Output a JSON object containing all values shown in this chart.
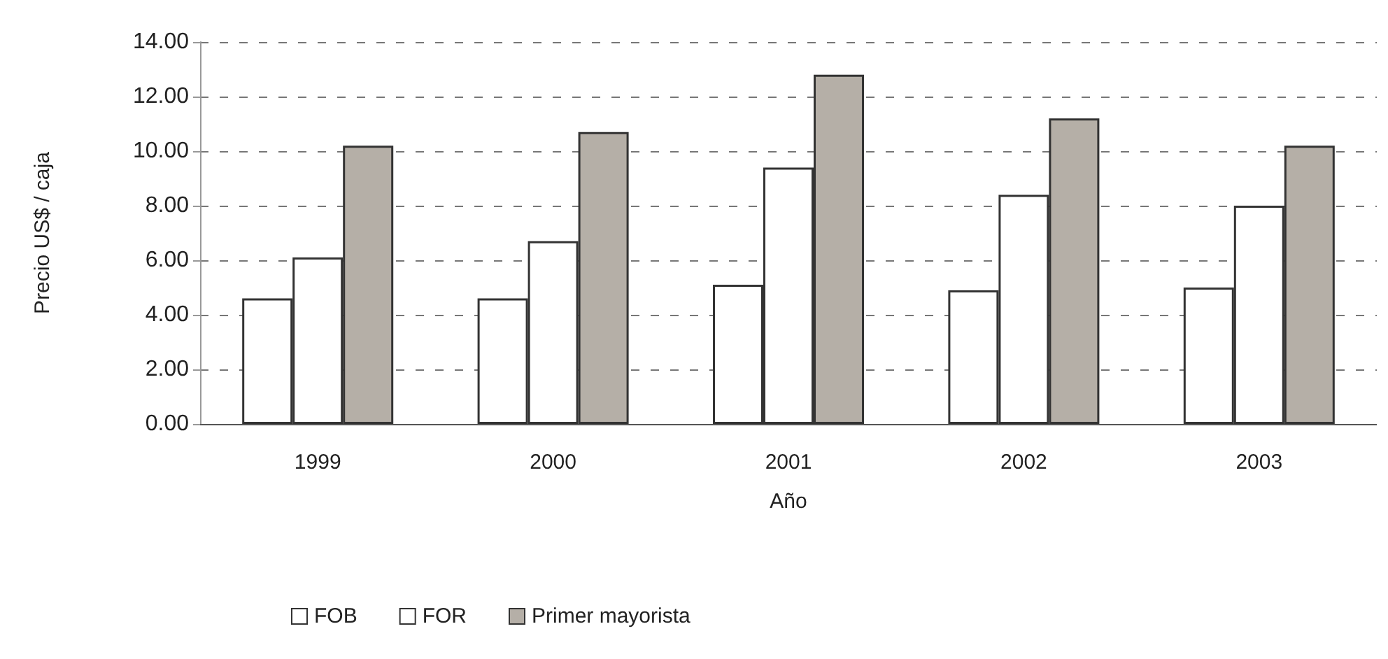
{
  "chart_data": {
    "type": "bar",
    "xlabel": "Año",
    "ylabel": "Precio US$ / caja",
    "categories": [
      "1999",
      "2000",
      "2001",
      "2002",
      "2003"
    ],
    "series": [
      {
        "name": "FOB",
        "color": "#ffffff",
        "values": [
          4.6,
          4.6,
          5.1,
          4.9,
          5.0
        ]
      },
      {
        "name": "FOR",
        "color": "#ffffff",
        "values": [
          6.1,
          6.7,
          9.4,
          8.4,
          8.0
        ]
      },
      {
        "name": "Primer mayorista",
        "color": "#b5afa7",
        "values": [
          10.2,
          10.7,
          12.8,
          11.2,
          10.2
        ]
      }
    ],
    "ylim": [
      0,
      14
    ],
    "yticks": [
      {
        "value": 0,
        "label": "0.00"
      },
      {
        "value": 2,
        "label": "2.00"
      },
      {
        "value": 4,
        "label": "4.00"
      },
      {
        "value": 6,
        "label": "6.00"
      },
      {
        "value": 8,
        "label": "8.00"
      },
      {
        "value": 10,
        "label": "10.00"
      },
      {
        "value": 12,
        "label": "12.00"
      },
      {
        "value": 14,
        "label": "14.00"
      }
    ],
    "grid": "y",
    "legend": "bottom"
  }
}
